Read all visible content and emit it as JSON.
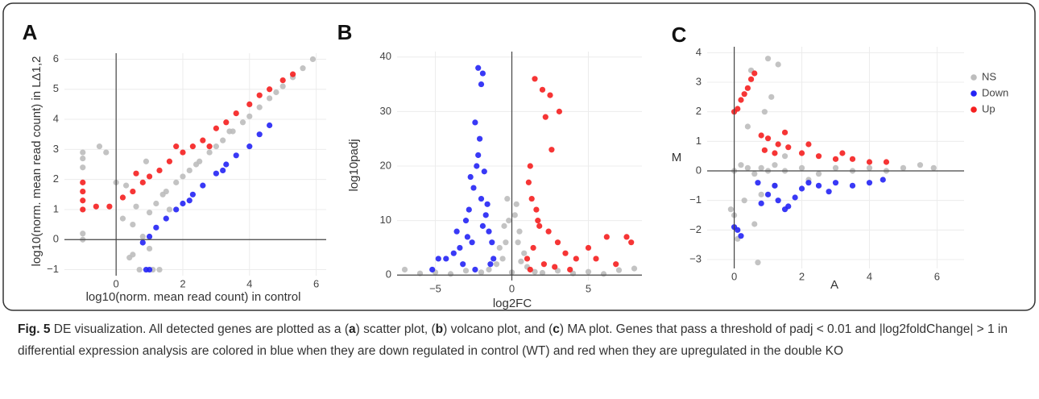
{
  "chart_data": [
    {
      "type": "scatter",
      "panel_label": "A",
      "x_label": "log10(norm. mean read count) in control",
      "y_label": "log10(norm. mean read count) in LΔ1,2",
      "xlim": [
        -1.55,
        6.3
      ],
      "ylim": [
        -1.2,
        6.2
      ],
      "xticks": [
        0,
        2,
        4,
        6
      ],
      "yticks": [
        {
          "value": -1,
          "label": "−1"
        },
        0,
        1,
        2,
        3,
        4,
        5,
        6
      ],
      "grid": true,
      "zeroline": true,
      "series": [
        {
          "color": "#bdbdbd",
          "x": [
            -1,
            -1,
            -1,
            -1,
            -1,
            -0.5,
            -0.3,
            0,
            0.2,
            0.4,
            0.5,
            0.6,
            0.8,
            1,
            1,
            1.2,
            1.4,
            1.5,
            1.8,
            2,
            2.2,
            2.5,
            2.8,
            3,
            3.2,
            3.5,
            3.8,
            4,
            4.3,
            4.6,
            5,
            5.3,
            5.6,
            5.9,
            0.7,
            1.1,
            0.5,
            0.3,
            1.3,
            1.6,
            0.9,
            2.4,
            3.4,
            4.8
          ],
          "y": [
            2.9,
            2.7,
            2.4,
            0.2,
            0,
            3.1,
            2.9,
            1.9,
            0.7,
            -0.6,
            0.5,
            1.1,
            0.1,
            0.9,
            -0.3,
            1.2,
            1.5,
            1.6,
            1.9,
            2.1,
            2.3,
            2.6,
            2.9,
            3.1,
            3.3,
            3.6,
            3.9,
            4.1,
            4.4,
            4.7,
            5.1,
            5.4,
            5.7,
            6,
            -1,
            -1,
            -0.5,
            1.8,
            -1,
            1,
            2.6,
            2.5,
            3.6,
            4.9
          ]
        },
        {
          "color": "#2323f5",
          "x": [
            0.8,
            1,
            1.2,
            1.5,
            1.8,
            2,
            2.3,
            2.6,
            3,
            3.3,
            3.6,
            4,
            4.3,
            4.6,
            0.9,
            1,
            2.2,
            3.2
          ],
          "y": [
            -0.1,
            0.1,
            0.4,
            0.7,
            1,
            1.2,
            1.5,
            1.8,
            2.2,
            2.5,
            2.8,
            3.1,
            3.5,
            3.8,
            -1,
            -1,
            1.3,
            2.3
          ]
        },
        {
          "color": "#f51f1f",
          "x": [
            -1,
            -1,
            -1,
            -1,
            -0.6,
            -0.2,
            0.2,
            0.5,
            0.8,
            1,
            1.3,
            1.6,
            2,
            2.3,
            2.6,
            3,
            3.3,
            3.6,
            4,
            4.3,
            4.6,
            5,
            5.3,
            0.6,
            1.8,
            2.8
          ],
          "y": [
            1.9,
            1.6,
            1.3,
            1,
            1.1,
            1.1,
            1.4,
            1.6,
            1.9,
            2.1,
            2.3,
            2.6,
            2.9,
            3.1,
            3.3,
            3.7,
            3.9,
            4.2,
            4.5,
            4.8,
            5,
            5.3,
            5.5,
            2.2,
            3.1,
            3.1
          ]
        }
      ]
    },
    {
      "type": "scatter",
      "panel_label": "B",
      "x_label": "log2FC",
      "y_label": "log10padj",
      "xlim": [
        -7.5,
        8.5
      ],
      "ylim": [
        -1,
        41
      ],
      "xticks": [
        {
          "value": -5,
          "label": "−5"
        },
        0,
        5
      ],
      "yticks": [
        0,
        10,
        20,
        30,
        40
      ],
      "grid": true,
      "zeroline": true,
      "series": [
        {
          "color": "#bdbdbd",
          "x": [
            -7,
            -6,
            -5,
            -4,
            -3,
            -2,
            -1.5,
            -1,
            -0.8,
            -0.5,
            -0.3,
            0,
            0.3,
            0.5,
            0.8,
            1,
            1.5,
            2,
            3,
            4,
            5,
            6,
            7,
            8,
            -0.6,
            -0.4,
            0.4,
            0.6,
            -0.2,
            0.2
          ],
          "y": [
            1,
            0.3,
            0.5,
            0.2,
            0.8,
            0.5,
            1,
            2,
            5,
            9,
            14,
            0.5,
            13,
            8,
            4,
            1.5,
            0.6,
            0.4,
            0.8,
            0.3,
            0.6,
            0.2,
            0.9,
            1.2,
            3,
            6,
            6,
            2.5,
            10,
            11
          ]
        },
        {
          "color": "#2323f5",
          "x": [
            -2.2,
            -2,
            -2.4,
            -1.9,
            -2.1,
            -2.3,
            -2.5,
            -1.8,
            -2,
            -2.8,
            -3,
            -1.6,
            -1.5,
            -1.7,
            -2.6,
            -3.4,
            -3.8,
            -4.3,
            -4.8,
            -5.2,
            -3.2,
            -2.7,
            -1.3,
            -1.2,
            -1.9,
            -2.2,
            -3.6,
            -2.9,
            -1.4,
            -2.4
          ],
          "y": [
            38,
            35,
            28,
            37,
            25,
            20,
            16,
            19,
            14,
            12,
            10,
            13,
            8,
            11,
            6,
            5,
            4,
            3,
            3,
            1,
            2,
            18,
            6,
            3,
            9,
            22,
            8,
            7,
            2,
            1
          ]
        },
        {
          "color": "#f51f1f",
          "x": [
            1.5,
            2,
            2.2,
            2.5,
            3.1,
            2.6,
            1.2,
            1.1,
            1.3,
            1.6,
            1.8,
            2.4,
            3,
            3.5,
            4.2,
            5,
            5.5,
            6.2,
            6.8,
            7.5,
            7.8,
            1.4,
            1,
            1.2,
            2.1,
            2.8,
            3.8,
            1.7
          ],
          "y": [
            36,
            34,
            29,
            33,
            30,
            23,
            20,
            17,
            14,
            12,
            9,
            8,
            6,
            4,
            3,
            5,
            3,
            7,
            2,
            7,
            6,
            5,
            3,
            1,
            2,
            1.5,
            1,
            10
          ]
        }
      ]
    },
    {
      "type": "scatter",
      "panel_label": "C",
      "x_label": "A",
      "y_label": "M",
      "xlim": [
        -0.8,
        6.8
      ],
      "ylim": [
        -3.3,
        4.2
      ],
      "xticks": [
        0,
        2,
        4,
        6
      ],
      "yticks": [
        {
          "value": -3,
          "label": "−3"
        },
        {
          "value": -2,
          "label": "−2"
        },
        {
          "value": -1,
          "label": "−1"
        },
        0,
        1,
        2,
        3,
        4
      ],
      "grid": true,
      "zeroline": true,
      "legend": "right",
      "series": [
        {
          "name": "NS",
          "color": "#bdbdbd",
          "x": [
            0,
            0.2,
            0.4,
            0.6,
            0.8,
            1,
            1.2,
            1.5,
            2,
            2.5,
            3,
            3.5,
            4,
            4.5,
            5,
            5.5,
            5.9,
            0.5,
            1,
            1.3,
            0.9,
            1.1,
            0.8,
            0.3,
            0,
            -0.1,
            0.1,
            0.7,
            0.4,
            1.2,
            1.5,
            0.6,
            2.2
          ],
          "y": [
            0,
            0.2,
            0.1,
            -0.1,
            0.1,
            0,
            0.2,
            0,
            0.1,
            -0.1,
            0.1,
            0,
            0.1,
            0,
            0.1,
            0.2,
            0.1,
            3.4,
            3.8,
            3.6,
            2,
            2.5,
            -0.8,
            -1,
            -1.5,
            -1.3,
            -2.3,
            -3.1,
            1.5,
            -0.5,
            0.5,
            -1.8,
            -0.3
          ]
        },
        {
          "name": "Down",
          "color": "#2323f5",
          "x": [
            0.7,
            1,
            1.3,
            1.6,
            2,
            2.5,
            3,
            3.5,
            4,
            4.4,
            1.2,
            1.8,
            2.8,
            0.8,
            1.5,
            0,
            0.1,
            0.2,
            2.2
          ],
          "y": [
            -0.4,
            -0.8,
            -1,
            -1.2,
            -0.6,
            -0.5,
            -0.4,
            -0.5,
            -0.4,
            -0.3,
            -0.5,
            -0.9,
            -0.7,
            -1.1,
            -1.3,
            -1.9,
            -2,
            -2.2,
            -0.4
          ]
        },
        {
          "name": "Up",
          "color": "#f51f1f",
          "x": [
            0,
            0.1,
            0.2,
            0.3,
            0.4,
            0.5,
            0.6,
            0.8,
            1,
            1.3,
            1.6,
            2,
            2.5,
            3,
            3.5,
            4,
            4.5,
            1.2,
            1.5,
            2.2,
            0.9,
            3.2
          ],
          "y": [
            2,
            2.1,
            2.4,
            2.6,
            2.8,
            3.1,
            3.3,
            1.2,
            1.1,
            0.9,
            0.8,
            0.6,
            0.5,
            0.4,
            0.4,
            0.3,
            0.3,
            0.6,
            1.3,
            0.9,
            0.7,
            0.6
          ]
        }
      ]
    }
  ],
  "caption": {
    "label": "Fig. 5",
    "parts": [
      "DE visualization. All detected genes are plotted as a (",
      "a",
      ") scatter plot, (",
      "b",
      ") volcano plot, and (",
      "c",
      ") MA plot. Genes that pass a threshold of padj < 0.01 and |log2foldChange| > 1 in differential expression analysis are colored in blue when they are down regulated in control (WT) and red when they are upregulated in the double KO"
    ]
  }
}
